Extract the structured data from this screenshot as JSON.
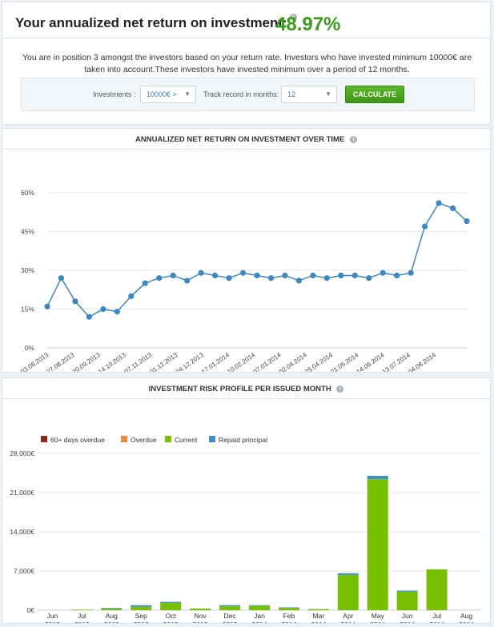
{
  "header": {
    "roi_label": "Your annualized net return on investment:",
    "info_glyph": "i",
    "roi_value": "48.97%",
    "position_text": "You are in position 3 amongst the investors based on your return rate. Investors who have invested minimum 10000€ are taken into account.These investors have invested minimum over a period of 12 months."
  },
  "filters": {
    "investments_label": "Investments :",
    "investments_value": "10000€ >",
    "track_label": "Track record in months:",
    "track_value": "12",
    "calculate_label": "CALCULATE"
  },
  "line_chart": {
    "title": "ANNUALIZED NET RETURN ON INVESTMENT OVER TIME",
    "info_glyph": "i",
    "line_color": "#3d88c0",
    "chart_data": {
      "type": "line",
      "y_ticks": [
        "60%",
        "45%",
        "30%",
        "15%",
        "0%"
      ],
      "y_tick_values": [
        60,
        45,
        30,
        15,
        0
      ],
      "ylim": [
        0,
        60
      ],
      "x_tick_labels": [
        "03.08.2013",
        "27.08.2013",
        "20.09.2013",
        "14.10.2013",
        "07.11.2013",
        "01.12.2013",
        "24.12.2013",
        "17.01.2014",
        "10.02.2014",
        "07.03.2014",
        "02.04.2014",
        "25.04.2014",
        "21.05.2014",
        "14.06.2014",
        "13.07.2014",
        "04.08.2014"
      ],
      "values": [
        16,
        27,
        18,
        12,
        15,
        14,
        20,
        25,
        27,
        28,
        26,
        29,
        28,
        27,
        29,
        28,
        27,
        28,
        26,
        28,
        27,
        28,
        28,
        27,
        29,
        28,
        29,
        47,
        56,
        54,
        49
      ]
    }
  },
  "bar_chart": {
    "title": "INVESTMENT RISK PROFILE PER ISSUED MONTH",
    "info_glyph": "i",
    "chart_data": {
      "type": "bar",
      "stacked": true,
      "y_ticks": [
        "28,000€",
        "21,000€",
        "14,000€",
        "7,000€",
        "0€"
      ],
      "y_tick_values": [
        28000,
        21000,
        14000,
        7000,
        0
      ],
      "ylim": [
        0,
        28000
      ],
      "categories": [
        [
          "Jun",
          "2013"
        ],
        [
          "Jul",
          "2013"
        ],
        [
          "Aug",
          "2013"
        ],
        [
          "Sep",
          "2013"
        ],
        [
          "Oct",
          "2013"
        ],
        [
          "Nov",
          "2013"
        ],
        [
          "Dec",
          "2013"
        ],
        [
          "Jan",
          "2014"
        ],
        [
          "Feb",
          "2014"
        ],
        [
          "Mar",
          "2014"
        ],
        [
          "Apr",
          "2014"
        ],
        [
          "May",
          "2014"
        ],
        [
          "Jun",
          "2014"
        ],
        [
          "Jul",
          "2014"
        ],
        [
          "Aug",
          "2014"
        ]
      ],
      "series": [
        {
          "name": "60+ days overdue",
          "color": "#8a2a12",
          "values": [
            0,
            0,
            0,
            0,
            0,
            0,
            0,
            0,
            0,
            0,
            0,
            0,
            0,
            0,
            0
          ]
        },
        {
          "name": "Overdue",
          "color": "#f08a3a",
          "values": [
            0,
            0,
            0,
            0,
            0,
            0,
            0,
            0,
            0,
            0,
            0,
            0,
            0,
            0,
            0
          ]
        },
        {
          "name": "Current",
          "color": "#78bf00",
          "values": [
            0,
            100,
            300,
            600,
            1300,
            300,
            700,
            800,
            400,
            200,
            6300,
            23400,
            3300,
            7300,
            0
          ]
        },
        {
          "name": "Repaid principal",
          "color": "#3f8fca",
          "values": [
            0,
            0,
            100,
            300,
            200,
            0,
            200,
            100,
            100,
            0,
            300,
            600,
            200,
            0,
            0
          ]
        }
      ]
    }
  }
}
